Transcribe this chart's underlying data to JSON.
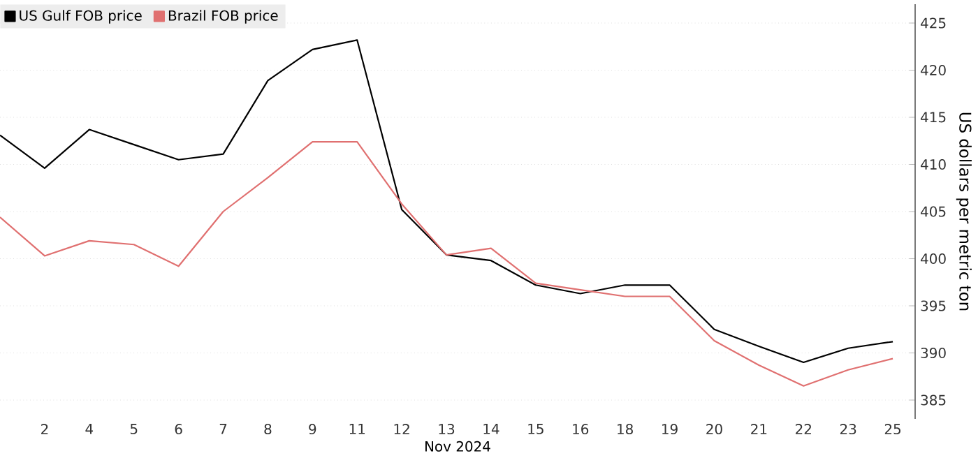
{
  "chart_data": {
    "type": "line",
    "categories": [
      null,
      "2",
      "4",
      "5",
      "6",
      "7",
      "8",
      "9",
      "11",
      "12",
      "13",
      "14",
      "15",
      "16",
      "18",
      "19",
      "20",
      "21",
      "22",
      "23",
      "25"
    ],
    "xlabel": "Nov 2024",
    "ylabel": "US dollars per metric ton",
    "ylim": [
      383,
      427
    ],
    "yticks": [
      385,
      390,
      395,
      400,
      405,
      410,
      415,
      420,
      425
    ],
    "series": [
      {
        "name": "US Gulf FOB price",
        "color": "#000000",
        "values": [
          413.1,
          409.6,
          413.7,
          412.1,
          410.5,
          411.1,
          418.9,
          422.2,
          423.2,
          405.2,
          400.4,
          399.8,
          397.2,
          396.3,
          397.2,
          397.2,
          392.5,
          390.7,
          389.0,
          390.5,
          391.2
        ]
      },
      {
        "name": "Brazil FOB price",
        "color": "#e07070",
        "values": [
          404.4,
          400.3,
          401.9,
          401.5,
          399.2,
          405.0,
          408.6,
          412.4,
          412.4,
          405.8,
          400.4,
          401.1,
          397.4,
          396.7,
          396.0,
          396.0,
          391.3,
          388.7,
          386.5,
          388.2,
          389.4
        ]
      }
    ],
    "grid": "y",
    "legend": "top left",
    "marker": "none",
    "line_style": "solid"
  }
}
